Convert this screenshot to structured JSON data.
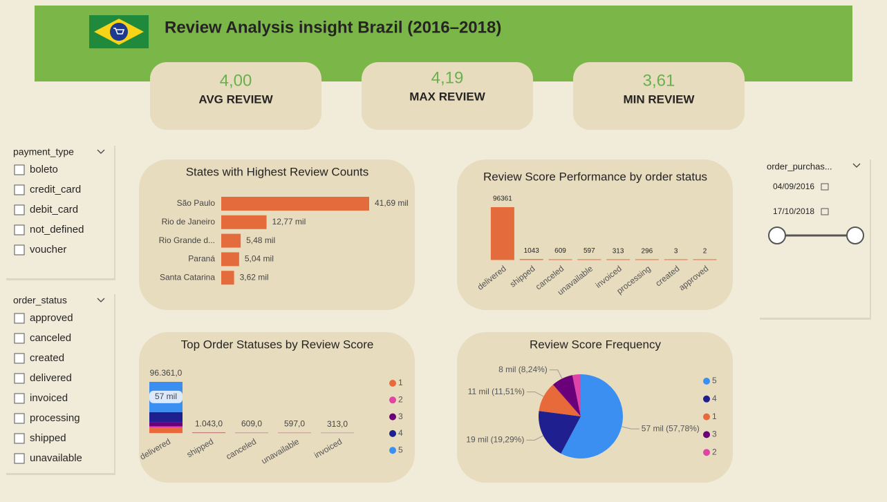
{
  "header": {
    "title": "Review Analysis insight Brazil (2016–2018)"
  },
  "cards": [
    {
      "value": "4,00",
      "label": "AVG REVIEW"
    },
    {
      "value": "4,19",
      "label": "MAX REVIEW"
    },
    {
      "value": "3,61",
      "label": "MIN REVIEW"
    }
  ],
  "slicers": [
    {
      "title": "payment_type",
      "items": [
        "boleto",
        "credit_card",
        "debit_card",
        "not_defined",
        "voucher"
      ]
    },
    {
      "title": "order_status",
      "items": [
        "approved",
        "canceled",
        "created",
        "delivered",
        "invoiced",
        "processing",
        "shipped",
        "unavailable"
      ]
    }
  ],
  "date_slicer": {
    "title": "order_purchas...",
    "start": "04/09/2016",
    "end": "17/10/2018"
  },
  "chart_data": [
    {
      "type": "hbar",
      "title": "States with Highest Review Counts",
      "categories": [
        "São Paulo",
        "Rio de Janeiro",
        "Rio Grande d...",
        "Paraná",
        "Santa Catarina"
      ],
      "values": [
        41690,
        12770,
        5480,
        5040,
        3620
      ],
      "value_labels": [
        "41,69 mil",
        "12,77 mil",
        "5,48 mil",
        "5,04 mil",
        "3,62 mil"
      ],
      "color": "#e46c3c"
    },
    {
      "type": "bar",
      "title": "Review Score Performance by order status",
      "categories": [
        "delivered",
        "shipped",
        "canceled",
        "unavailable",
        "invoiced",
        "processing",
        "created",
        "approved"
      ],
      "values": [
        96361,
        1043,
        609,
        597,
        313,
        296,
        3,
        2
      ],
      "color": "#e46c3c"
    },
    {
      "type": "stacked_bar",
      "title": "Top Order Statuses by Review Score",
      "categories": [
        "delivered",
        "shipped",
        "canceled",
        "unavailable",
        "invoiced"
      ],
      "totals": [
        96361,
        1043,
        609,
        597,
        313
      ],
      "total_labels": [
        "96.361,0",
        "1.043,0",
        "609,0",
        "597,0",
        "313,0"
      ],
      "series": [
        {
          "name": "1",
          "color": "#e8693a",
          "values": [
            9554,
            600,
            350,
            400,
            150
          ]
        },
        {
          "name": "2",
          "color": "#e044a7",
          "values": [
            2900,
            100,
            60,
            50,
            30
          ]
        },
        {
          "name": "3",
          "color": "#6b007b",
          "values": [
            7900,
            150,
            60,
            50,
            40
          ]
        },
        {
          "name": "4",
          "color": "#1f1f8f",
          "values": [
            18907,
            90,
            50,
            30,
            30
          ]
        },
        {
          "name": "5",
          "color": "#3a8ff0",
          "values": [
            57100,
            103,
            89,
            67,
            63
          ],
          "value_labels": [
            "57 mil",
            null,
            null,
            null,
            null
          ]
        }
      ]
    },
    {
      "type": "pie",
      "title": "Review Score Frequency",
      "categories": [
        "5",
        "4",
        "1",
        "3",
        "2"
      ],
      "values": [
        57.78,
        19.29,
        11.51,
        8.24,
        3.18
      ],
      "value_labels": [
        "57 mil (57,78%)",
        "19 mil (19,29%)",
        "11 mil (11,51%)",
        "8 mil (8,24%)",
        null
      ],
      "colors": [
        "#3a8ff0",
        "#1f1f8f",
        "#e8693a",
        "#6b007b",
        "#e044a7"
      ]
    }
  ]
}
